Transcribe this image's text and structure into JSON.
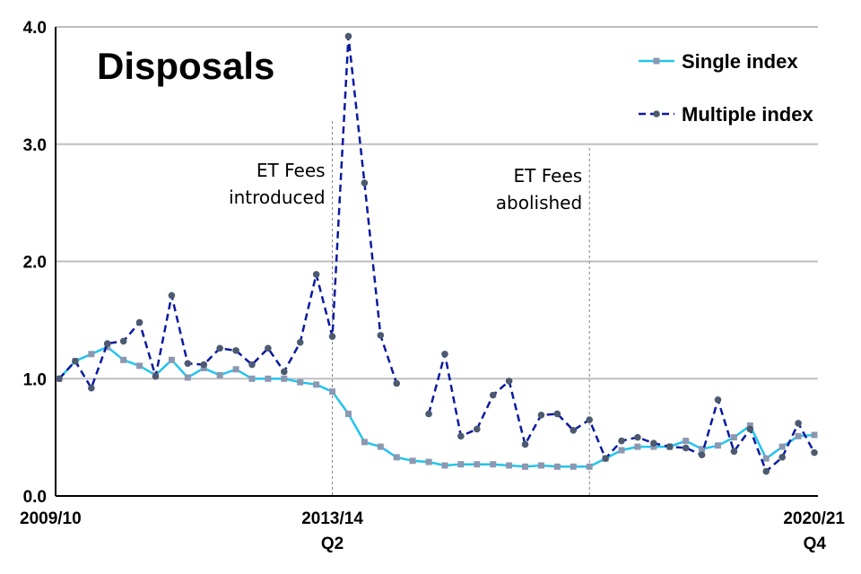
{
  "chart_data": {
    "type": "line",
    "title": "Disposals",
    "xlabel": "",
    "ylabel": "",
    "ylim": [
      0,
      4
    ],
    "y_ticks": [
      "0.0",
      "1.0",
      "2.0",
      "3.0",
      "4.0"
    ],
    "grid": "horizontal",
    "legend_position": "top-right",
    "x_tick_labels": [
      {
        "line1": "2009/10",
        "line2": ""
      },
      {
        "line1": "2013/14",
        "line2": "Q2"
      },
      {
        "line1": "2020/21",
        "line2": "Q4"
      }
    ],
    "x_tick_indices": [
      0,
      17,
      47
    ],
    "annotations": [
      {
        "lines": [
          "ET Fees",
          "introduced"
        ],
        "x_index": 17
      },
      {
        "lines": [
          "ET Fees",
          "abolished"
        ],
        "x_index": 33
      }
    ],
    "series": [
      {
        "name": "Single index",
        "color": "#22c4ee",
        "marker_color": "#8c98b0",
        "values": [
          1.0,
          1.15,
          1.21,
          1.27,
          1.16,
          1.11,
          1.03,
          1.16,
          1.01,
          1.09,
          1.03,
          1.08,
          1.0,
          1.0,
          1.0,
          0.97,
          0.95,
          0.89,
          0.7,
          0.46,
          0.42,
          0.33,
          0.3,
          0.29,
          0.26,
          0.27,
          0.27,
          0.27,
          0.26,
          0.25,
          0.26,
          0.25,
          0.25,
          0.25,
          0.32,
          0.39,
          0.42,
          0.42,
          0.42,
          0.47,
          0.4,
          0.43,
          0.5,
          0.6,
          0.32,
          0.42,
          0.51,
          0.52
        ]
      },
      {
        "name": "Multiple index",
        "color": "#0a1aa0",
        "marker_color": "#4c5a70",
        "values": [
          1.0,
          1.15,
          0.92,
          1.3,
          1.32,
          1.48,
          1.02,
          1.71,
          1.13,
          1.12,
          1.26,
          1.24,
          1.12,
          1.26,
          1.06,
          1.31,
          1.89,
          1.36,
          3.92,
          2.67,
          1.37,
          0.96,
          null,
          0.7,
          1.21,
          0.51,
          0.57,
          0.86,
          0.98,
          0.44,
          0.69,
          0.7,
          0.56,
          0.65,
          0.32,
          0.47,
          0.5,
          0.45,
          0.42,
          0.41,
          0.35,
          0.82,
          0.38,
          0.57,
          0.21,
          0.33,
          0.62,
          0.37
        ]
      }
    ]
  }
}
